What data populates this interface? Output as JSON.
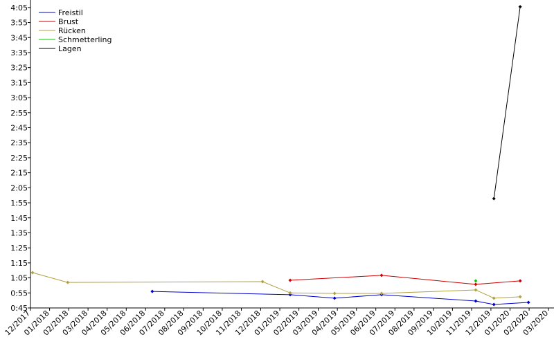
{
  "chart_data": {
    "type": "line",
    "xlim": [
      2017.917,
      2020.191
    ],
    "xticks": [
      {
        "value": 2017.917,
        "label": "12/2017"
      },
      {
        "value": 2018.0,
        "label": "01/2018"
      },
      {
        "value": 2018.083,
        "label": "02/2018"
      },
      {
        "value": 2018.167,
        "label": "03/2018"
      },
      {
        "value": 2018.25,
        "label": "04/2018"
      },
      {
        "value": 2018.333,
        "label": "05/2018"
      },
      {
        "value": 2018.417,
        "label": "06/2018"
      },
      {
        "value": 2018.5,
        "label": "07/2018"
      },
      {
        "value": 2018.583,
        "label": "08/2018"
      },
      {
        "value": 2018.667,
        "label": "09/2018"
      },
      {
        "value": 2018.75,
        "label": "10/2018"
      },
      {
        "value": 2018.833,
        "label": "11/2018"
      },
      {
        "value": 2018.917,
        "label": "12/2018"
      },
      {
        "value": 2019.0,
        "label": "01/2019"
      },
      {
        "value": 2019.083,
        "label": "02/2019"
      },
      {
        "value": 2019.167,
        "label": "03/2019"
      },
      {
        "value": 2019.25,
        "label": "04/2019"
      },
      {
        "value": 2019.333,
        "label": "05/2019"
      },
      {
        "value": 2019.417,
        "label": "06/2019"
      },
      {
        "value": 2019.5,
        "label": "07/2019"
      },
      {
        "value": 2019.583,
        "label": "08/2019"
      },
      {
        "value": 2019.667,
        "label": "09/2019"
      },
      {
        "value": 2019.75,
        "label": "10/2019"
      },
      {
        "value": 2019.833,
        "label": "11/2019"
      },
      {
        "value": 2019.917,
        "label": "12/2019"
      },
      {
        "value": 2020.0,
        "label": "01/2020"
      },
      {
        "value": 2020.083,
        "label": "02/2020"
      },
      {
        "value": 2020.167,
        "label": "03/2020"
      }
    ],
    "ylim": [
      45,
      250
    ],
    "yticks": [
      {
        "value": 45,
        "label": "0:45"
      },
      {
        "value": 55,
        "label": "0:55"
      },
      {
        "value": 65,
        "label": "1:05"
      },
      {
        "value": 75,
        "label": "1:15"
      },
      {
        "value": 85,
        "label": "1:25"
      },
      {
        "value": 95,
        "label": "1:35"
      },
      {
        "value": 105,
        "label": "1:45"
      },
      {
        "value": 115,
        "label": "1:55"
      },
      {
        "value": 125,
        "label": "2:05"
      },
      {
        "value": 135,
        "label": "2:15"
      },
      {
        "value": 145,
        "label": "2:25"
      },
      {
        "value": 155,
        "label": "2:35"
      },
      {
        "value": 165,
        "label": "2:45"
      },
      {
        "value": 175,
        "label": "2:55"
      },
      {
        "value": 185,
        "label": "3:05"
      },
      {
        "value": 195,
        "label": "3:15"
      },
      {
        "value": 205,
        "label": "3:25"
      },
      {
        "value": 215,
        "label": "3:35"
      },
      {
        "value": 225,
        "label": "3:45"
      },
      {
        "value": 235,
        "label": "3:55"
      },
      {
        "value": 245,
        "label": "4:05"
      }
    ],
    "legend": "top-left",
    "series": [
      {
        "name": "Freistil",
        "color": "#0000cc",
        "x": [
          2018.446,
          2019.045,
          2019.238,
          2019.442,
          2019.851,
          2019.93,
          2020.08
        ],
        "values": [
          56,
          53.8,
          51.5,
          53.8,
          49.6,
          47.3,
          48.7
        ]
      },
      {
        "name": "Brust",
        "color": "#cc0000",
        "x": [
          2019.045,
          2019.442,
          2019.851,
          2020.044
        ],
        "values": [
          63.4,
          66.7,
          60.7,
          63
        ]
      },
      {
        "name": "Rücken",
        "color": "#b0a040",
        "x": [
          2017.926,
          2018.079,
          2018.925,
          2019.045,
          2019.238,
          2019.442,
          2019.851,
          2019.93,
          2020.044
        ],
        "values": [
          68.5,
          62,
          62.5,
          55,
          54.7,
          54.7,
          57,
          51.5,
          52.4
        ]
      },
      {
        "name": "Schmetterling",
        "color": "#00cc00",
        "x": [
          2019.851
        ],
        "values": [
          63
        ]
      },
      {
        "name": "Lagen",
        "color": "#000000",
        "x": [
          2019.93,
          2020.044
        ],
        "values": [
          117.8,
          245.5
        ]
      }
    ]
  }
}
